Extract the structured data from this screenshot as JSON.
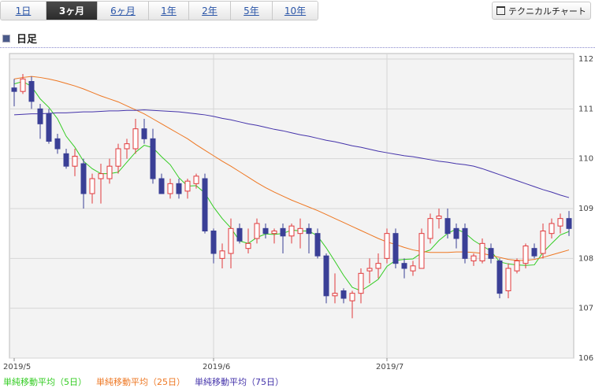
{
  "tabs": [
    {
      "label": "1日",
      "selected": false
    },
    {
      "label": "3ヶ月",
      "selected": true
    },
    {
      "label": "6ヶ月",
      "selected": false
    },
    {
      "label": "1年",
      "selected": false
    },
    {
      "label": "2年",
      "selected": false
    },
    {
      "label": "5年",
      "selected": false
    },
    {
      "label": "10年",
      "selected": false
    }
  ],
  "button": "テクニカルチャート",
  "section_title": "日足",
  "chart_data": {
    "type": "candlestick",
    "categories": [
      "2019/5",
      null,
      null,
      null,
      null,
      null,
      null,
      null,
      null,
      null,
      null,
      null,
      null,
      null,
      null,
      null,
      null,
      null,
      null,
      null,
      null,
      null,
      null,
      "2019/6",
      null,
      null,
      null,
      null,
      null,
      null,
      null,
      null,
      null,
      null,
      null,
      null,
      null,
      null,
      null,
      null,
      null,
      null,
      null,
      "2019/7",
      null,
      null,
      null,
      null,
      null,
      null,
      null,
      null,
      null,
      null,
      null,
      null,
      null,
      null,
      null,
      null,
      null,
      null,
      null,
      null,
      null
    ],
    "open": [
      111.42,
      111.35,
      111.55,
      111.0,
      110.9,
      110.4,
      110.1,
      109.85,
      109.9,
      109.3,
      109.6,
      109.6,
      109.85,
      110.2,
      110.2,
      110.6,
      110.4,
      109.6,
      109.3,
      109.5,
      109.35,
      109.5,
      109.6,
      108.55,
      108.0,
      108.1,
      108.6,
      108.2,
      108.4,
      108.6,
      108.5,
      108.6,
      108.45,
      108.5,
      108.6,
      108.5,
      108.05,
      107.25,
      107.35,
      107.15,
      107.3,
      107.75,
      107.8,
      108.0,
      108.5,
      107.9,
      107.75,
      107.8,
      108.4,
      108.8,
      108.8,
      108.6,
      108.6,
      107.95,
      107.95,
      108.2,
      107.95,
      107.35,
      107.75,
      107.9,
      108.2,
      108.1,
      108.5,
      108.65,
      108.8
    ],
    "high": [
      111.6,
      111.7,
      111.65,
      111.1,
      111.0,
      110.5,
      110.2,
      110.2,
      110.0,
      109.7,
      109.9,
      110.0,
      110.3,
      110.4,
      110.8,
      110.8,
      110.6,
      109.7,
      109.6,
      109.6,
      109.6,
      109.7,
      109.7,
      108.6,
      108.3,
      108.8,
      108.7,
      108.6,
      108.8,
      108.7,
      108.6,
      108.7,
      108.7,
      108.8,
      108.7,
      108.6,
      108.1,
      107.7,
      107.4,
      107.35,
      107.8,
      108.0,
      108.1,
      108.6,
      108.6,
      108.0,
      107.95,
      108.6,
      108.9,
      109.0,
      109.0,
      108.7,
      108.7,
      108.1,
      108.4,
      108.3,
      108.0,
      107.9,
      108.0,
      108.3,
      108.3,
      108.7,
      108.8,
      108.9,
      108.95
    ],
    "low": [
      111.05,
      111.3,
      111.0,
      110.4,
      110.3,
      110.1,
      109.8,
      109.65,
      109.0,
      109.1,
      109.1,
      109.5,
      109.7,
      110.0,
      110.1,
      110.3,
      109.5,
      109.3,
      109.2,
      109.2,
      109.2,
      109.4,
      108.5,
      107.9,
      107.8,
      107.8,
      108.3,
      108.1,
      108.3,
      108.4,
      108.3,
      108.1,
      108.3,
      108.2,
      108.1,
      108.0,
      107.1,
      107.1,
      107.1,
      106.8,
      107.1,
      107.5,
      107.6,
      107.9,
      107.8,
      107.6,
      107.65,
      107.8,
      108.3,
      108.6,
      108.4,
      108.2,
      107.9,
      107.85,
      107.9,
      107.9,
      107.2,
      107.2,
      107.7,
      107.8,
      108.0,
      108.0,
      108.4,
      108.5,
      108.45
    ],
    "close": [
      111.35,
      111.6,
      111.15,
      110.7,
      110.35,
      110.2,
      109.85,
      110.05,
      109.3,
      109.6,
      109.7,
      109.85,
      110.2,
      110.3,
      110.6,
      110.4,
      109.6,
      109.3,
      109.5,
      109.3,
      109.55,
      109.65,
      108.55,
      108.1,
      108.15,
      108.6,
      108.35,
      108.3,
      108.7,
      108.5,
      108.55,
      108.45,
      108.65,
      108.6,
      108.5,
      108.05,
      107.25,
      107.3,
      107.2,
      107.3,
      107.7,
      107.8,
      107.9,
      108.5,
      107.9,
      107.8,
      107.85,
      108.5,
      108.8,
      108.85,
      108.5,
      108.4,
      108.0,
      108.05,
      108.3,
      108.0,
      107.3,
      107.8,
      107.95,
      108.25,
      108.05,
      108.55,
      108.7,
      108.8,
      108.6
    ],
    "up_color": "#e0393b",
    "down_color": "#3a3f96",
    "series": [
      {
        "name": "単純移動平均（5日）",
        "color": "#33cc22",
        "values": [
          111.5,
          111.55,
          111.45,
          111.2,
          111.03,
          110.8,
          110.45,
          110.23,
          109.95,
          109.8,
          109.7,
          109.7,
          109.73,
          109.93,
          110.13,
          110.27,
          110.22,
          110.04,
          109.88,
          109.62,
          109.45,
          109.46,
          109.31,
          109.03,
          108.8,
          108.61,
          108.35,
          108.3,
          108.42,
          108.49,
          108.48,
          108.5,
          108.57,
          108.55,
          108.55,
          108.45,
          108.21,
          107.94,
          107.66,
          107.42,
          107.35,
          107.46,
          107.58,
          107.84,
          107.96,
          107.98,
          107.99,
          108.11,
          108.17,
          108.36,
          108.5,
          108.59,
          108.51,
          108.36,
          108.25,
          108.15,
          107.93,
          107.89,
          107.87,
          107.86,
          107.87,
          108.12,
          108.3,
          108.47,
          108.54
        ]
      },
      {
        "name": "単純移動平均（25日）",
        "color": "#ee7722",
        "values": [
          111.6,
          111.63,
          111.65,
          111.63,
          111.6,
          111.56,
          111.51,
          111.46,
          111.4,
          111.33,
          111.26,
          111.2,
          111.14,
          111.06,
          110.98,
          110.9,
          110.8,
          110.7,
          110.6,
          110.5,
          110.4,
          110.28,
          110.17,
          110.06,
          109.95,
          109.85,
          109.74,
          109.63,
          109.52,
          109.42,
          109.33,
          109.25,
          109.17,
          109.1,
          109.03,
          108.96,
          108.88,
          108.8,
          108.72,
          108.64,
          108.56,
          108.48,
          108.4,
          108.33,
          108.28,
          108.22,
          108.17,
          108.14,
          108.12,
          108.12,
          108.12,
          108.13,
          108.13,
          108.12,
          108.1,
          108.06,
          108.02,
          107.98,
          107.96,
          107.96,
          107.98,
          108.02,
          108.07,
          108.12,
          108.17
        ]
      },
      {
        "name": "単純移動平均（75日）",
        "color": "#4433aa",
        "values": [
          110.88,
          110.89,
          110.9,
          110.9,
          110.91,
          110.92,
          110.92,
          110.93,
          110.94,
          110.94,
          110.95,
          110.96,
          110.96,
          110.97,
          110.97,
          110.98,
          110.97,
          110.96,
          110.95,
          110.94,
          110.92,
          110.9,
          110.88,
          110.85,
          110.81,
          110.78,
          110.74,
          110.7,
          110.67,
          110.63,
          110.59,
          110.56,
          110.52,
          110.48,
          110.45,
          110.41,
          110.37,
          110.34,
          110.3,
          110.26,
          110.23,
          110.19,
          110.15,
          110.12,
          110.09,
          110.06,
          110.04,
          110.01,
          109.98,
          109.95,
          109.93,
          109.9,
          109.88,
          109.85,
          109.8,
          109.74,
          109.68,
          109.62,
          109.56,
          109.5,
          109.44,
          109.38,
          109.33,
          109.27,
          109.22
        ]
      }
    ],
    "ylim": [
      106,
      112
    ],
    "yticks": [
      106,
      107,
      108,
      109,
      110,
      111,
      112
    ],
    "grid": true
  }
}
